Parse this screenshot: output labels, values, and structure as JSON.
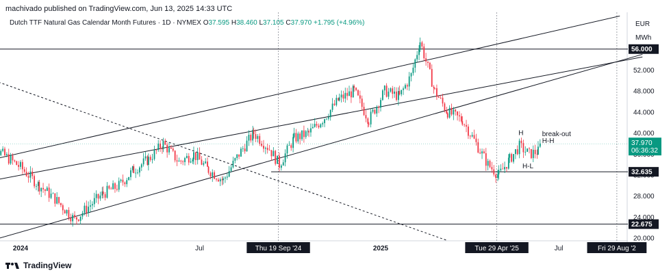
{
  "header": {
    "publisher_line": "machivado published on TradingView.com, Jun 13, 2025 14:33 UTC"
  },
  "legend": {
    "symbol": "Dutch TTF Natural Gas Calendar Month Futures · 1D · NYMEX",
    "o_label": "O",
    "o_value": "37.595",
    "h_label": "H",
    "h_value": "38.460",
    "l_label": "L",
    "l_value": "37.105",
    "c_label": "C",
    "c_value": "37.970",
    "change": "+1.795 (+4.96%)"
  },
  "axis": {
    "currency": "EUR",
    "unit": "MWh"
  },
  "chart_data": {
    "type": "candlestick",
    "x_ticks": [
      {
        "label": "2024",
        "date": "2024-01-01"
      },
      {
        "label": "Jul",
        "date": "2024-07-01"
      },
      {
        "label": "2025",
        "date": "2025-01-01"
      },
      {
        "label": "Jul",
        "date": "2025-07-01"
      }
    ],
    "y_ticks": [
      "20.000",
      "24.000",
      "28.000",
      "32.000",
      "36.000",
      "40.000",
      "44.000",
      "48.000",
      "52.000",
      "56.000"
    ],
    "ylim": [
      19.5,
      63
    ],
    "last_price": {
      "value": "37.970",
      "timer": "06:36:32"
    },
    "horizontal_levels": [
      {
        "label": "56.000",
        "value": 56.0
      },
      {
        "label": "32.635",
        "value": 32.635
      },
      {
        "label": "22.675",
        "value": 22.675
      }
    ],
    "vertical_markers": [
      {
        "label": "Thu 19 Sep '24",
        "date": "2024-09-19"
      },
      {
        "label": "Tue 29 Apr '25",
        "date": "2025-04-29"
      },
      {
        "label": "Fri 29 Aug '2",
        "date": "2025-08-29"
      }
    ],
    "annotations": [
      {
        "text": "H",
        "date": "2025-05-21",
        "value": 39.6
      },
      {
        "text": "break-out",
        "date": "2025-06-14",
        "value": 39.4
      },
      {
        "text": "H-H",
        "date": "2025-06-14",
        "value": 38.1
      },
      {
        "text": "H-L",
        "date": "2025-05-25",
        "value": 33.3
      }
    ],
    "trendlines": [
      {
        "name": "channel-upper",
        "from": {
          "date": "2023-11-20",
          "value": 34.4
        },
        "to": {
          "date": "2025-09-01",
          "value": 62.3
        }
      },
      {
        "name": "channel-lower",
        "from": {
          "date": "2023-12-01",
          "value": 19.5
        },
        "to": {
          "date": "2025-09-24",
          "value": 55.0
        }
      },
      {
        "name": "channel-middle",
        "from": {
          "date": "2023-11-20",
          "value": 30.5
        },
        "to": {
          "date": "2025-09-24",
          "value": 54.5
        }
      },
      {
        "name": "descending-dashed",
        "from": {
          "date": "2023-11-20",
          "value": 51.0
        },
        "to": {
          "date": "2025-03-09",
          "value": 19.6
        }
      }
    ],
    "series": [
      {
        "date": "2023-11-22",
        "close": 40.5
      },
      {
        "date": "2023-12-10",
        "close": 36.5
      },
      {
        "date": "2024-01-01",
        "close": 33.5
      },
      {
        "date": "2024-01-20",
        "close": 30.0
      },
      {
        "date": "2024-02-05",
        "close": 27.5
      },
      {
        "date": "2024-02-25",
        "close": 23.5
      },
      {
        "date": "2024-03-10",
        "close": 26.0
      },
      {
        "date": "2024-03-25",
        "close": 28.5
      },
      {
        "date": "2024-04-10",
        "close": 30.0
      },
      {
        "date": "2024-04-25",
        "close": 33.0
      },
      {
        "date": "2024-05-10",
        "close": 35.0
      },
      {
        "date": "2024-05-25",
        "close": 38.0
      },
      {
        "date": "2024-06-10",
        "close": 34.5
      },
      {
        "date": "2024-06-25",
        "close": 36.0
      },
      {
        "date": "2024-07-10",
        "close": 33.0
      },
      {
        "date": "2024-07-25",
        "close": 31.0
      },
      {
        "date": "2024-08-10",
        "close": 36.0
      },
      {
        "date": "2024-08-25",
        "close": 40.0
      },
      {
        "date": "2024-09-10",
        "close": 37.0
      },
      {
        "date": "2024-09-20",
        "close": 34.0
      },
      {
        "date": "2024-10-05",
        "close": 39.0
      },
      {
        "date": "2024-10-20",
        "close": 40.0
      },
      {
        "date": "2024-11-05",
        "close": 43.0
      },
      {
        "date": "2024-11-20",
        "close": 46.5
      },
      {
        "date": "2024-12-05",
        "close": 48.0
      },
      {
        "date": "2024-12-20",
        "close": 42.5
      },
      {
        "date": "2025-01-05",
        "close": 48.0
      },
      {
        "date": "2025-01-20",
        "close": 47.0
      },
      {
        "date": "2025-02-01",
        "close": 51.0
      },
      {
        "date": "2025-02-10",
        "close": 57.5
      },
      {
        "date": "2025-02-25",
        "close": 48.0
      },
      {
        "date": "2025-03-10",
        "close": 44.0
      },
      {
        "date": "2025-03-25",
        "close": 42.5
      },
      {
        "date": "2025-04-08",
        "close": 38.0
      },
      {
        "date": "2025-04-20",
        "close": 34.0
      },
      {
        "date": "2025-05-01",
        "close": 32.0
      },
      {
        "date": "2025-05-12",
        "close": 35.0
      },
      {
        "date": "2025-05-22",
        "close": 37.5
      },
      {
        "date": "2025-06-01",
        "close": 36.0
      },
      {
        "date": "2025-06-10",
        "close": 36.5
      },
      {
        "date": "2025-06-13",
        "close": 37.97
      }
    ]
  },
  "footer": {
    "brand": "TradingView"
  }
}
